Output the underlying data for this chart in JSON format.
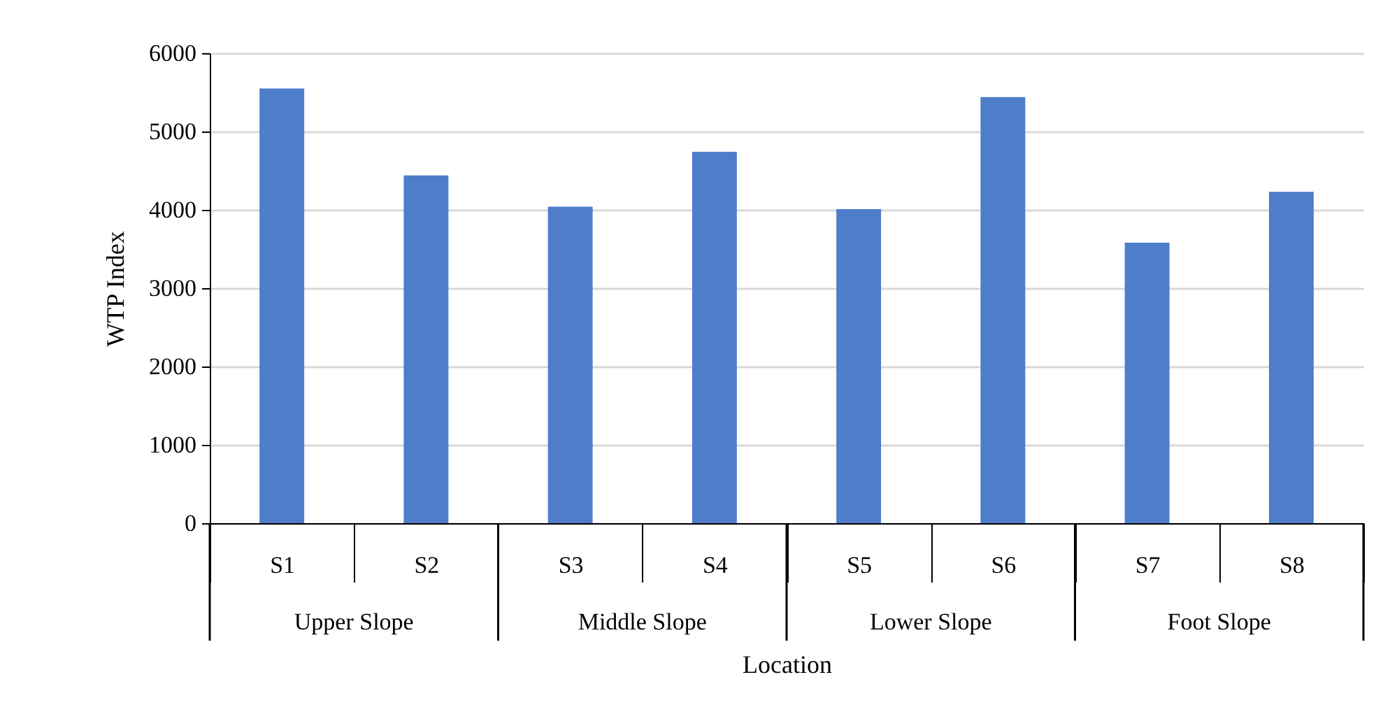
{
  "chart_data": {
    "type": "bar",
    "xlabel": "Location",
    "ylabel": "WTP Index",
    "categories": [
      "S1",
      "S2",
      "S3",
      "S4",
      "S5",
      "S6",
      "S7",
      "S8"
    ],
    "values": [
      5550,
      4440,
      4040,
      4740,
      4010,
      5440,
      3580,
      4230
    ],
    "color": "#4e7dc9",
    "ylim": [
      0,
      6000
    ],
    "yticks": [
      0,
      1000,
      2000,
      3000,
      4000,
      5000,
      6000
    ],
    "grid": "y",
    "annotations": [
      "Upper Slope",
      "Middle Slope",
      "Lower Slope",
      "Foot Slope"
    ]
  }
}
